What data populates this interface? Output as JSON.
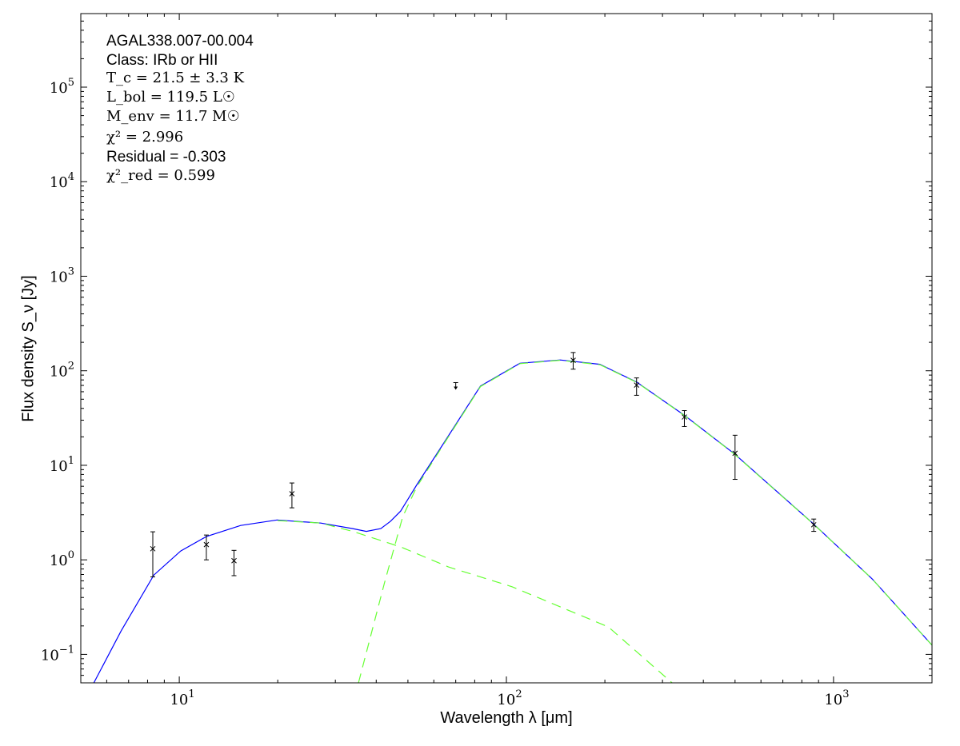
{
  "chart_data": {
    "type": "scatter",
    "xlabel": "Wavelength λ [μm]",
    "ylabel": "Flux density S_ν [Jy]",
    "xscale": "log",
    "yscale": "log",
    "xlim": [
      5,
      2000
    ],
    "ylim": [
      0.05,
      600000
    ],
    "x_ticks": [
      {
        "base": "10",
        "exp": "1",
        "value": 10
      },
      {
        "base": "10",
        "exp": "2",
        "value": 100
      },
      {
        "base": "10",
        "exp": "3",
        "value": 1000
      }
    ],
    "y_ticks": [
      {
        "base": "10",
        "exp": "−1",
        "value": 0.1
      },
      {
        "base": "10",
        "exp": "0",
        "value": 1
      },
      {
        "base": "10",
        "exp": "1",
        "value": 10
      },
      {
        "base": "10",
        "exp": "2",
        "value": 100
      },
      {
        "base": "10",
        "exp": "3",
        "value": 1000
      },
      {
        "base": "10",
        "exp": "4",
        "value": 10000
      },
      {
        "base": "10",
        "exp": "5",
        "value": 100000
      }
    ],
    "grid": false,
    "annotations": {
      "source": "AGAL338.007-00.004",
      "class": "Class: IRb or HII",
      "tc": "T_c = 21.5 ± 3.3 K",
      "lbol": "L_bol = 119.5 L☉",
      "menv": "M_env = 11.7 M☉",
      "chi2": "χ² = 2.996",
      "residual": "Residual = -0.303",
      "chi2red": "χ²_red = 0.599"
    },
    "points": [
      {
        "x": 8.3,
        "y": 1.31,
        "ylo": 0.66,
        "yhi": 1.98
      },
      {
        "x": 12.1,
        "y": 1.45,
        "ylo": 1.0,
        "yhi": 1.83
      },
      {
        "x": 14.7,
        "y": 0.98,
        "ylo": 0.68,
        "yhi": 1.26
      },
      {
        "x": 22.1,
        "y": 5.0,
        "ylo": 3.55,
        "yhi": 6.5
      },
      {
        "x": 160,
        "y": 129,
        "ylo": 104,
        "yhi": 156
      },
      {
        "x": 250,
        "y": 70.5,
        "ylo": 55,
        "yhi": 84
      },
      {
        "x": 350,
        "y": 32.4,
        "ylo": 25.7,
        "yhi": 37.9
      },
      {
        "x": 500,
        "y": 13.4,
        "ylo": 7.1,
        "yhi": 20.8
      },
      {
        "x": 870,
        "y": 2.35,
        "ylo": 2.0,
        "yhi": 2.7
      }
    ],
    "upper_limits": [
      {
        "x": 70,
        "y": 75
      }
    ],
    "series": [
      {
        "style": "solid",
        "color": "#0000ff",
        "x": [
          5.48,
          6.64,
          8.36,
          10.1,
          12.1,
          15.4,
          19.9,
          27.1,
          33.9,
          37.3,
          41.3,
          44.2,
          47.5,
          53.2,
          63.8,
          83.3,
          110,
          146,
          193,
          250,
          350,
          497,
          863,
          1312,
          2000
        ],
        "y": [
          0.05,
          0.177,
          0.69,
          1.24,
          1.76,
          2.31,
          2.64,
          2.45,
          2.14,
          2.0,
          2.14,
          2.55,
          3.28,
          6.2,
          16.4,
          69,
          120,
          130,
          117,
          76,
          33.8,
          13.3,
          2.45,
          0.63,
          0.125
        ]
      },
      {
        "style": "dashed",
        "color": "#66ff33",
        "x": [
          20,
          27.1,
          33.9,
          47.5,
          66.5,
          104,
          205,
          321
        ],
        "y": [
          2.6,
          2.45,
          2.0,
          1.37,
          0.84,
          0.52,
          0.195,
          0.05
        ]
      },
      {
        "style": "dashed",
        "color": "#66ff33",
        "x": [
          35.3,
          42.4,
          48.2,
          53.2,
          63.8,
          83.3,
          110,
          146,
          193,
          250,
          350,
          497,
          863,
          1312,
          2000
        ],
        "y": [
          0.05,
          0.57,
          2.86,
          5.9,
          16,
          68,
          119,
          129,
          116,
          75.5,
          33.6,
          13.2,
          2.44,
          0.63,
          0.125
        ]
      }
    ]
  }
}
